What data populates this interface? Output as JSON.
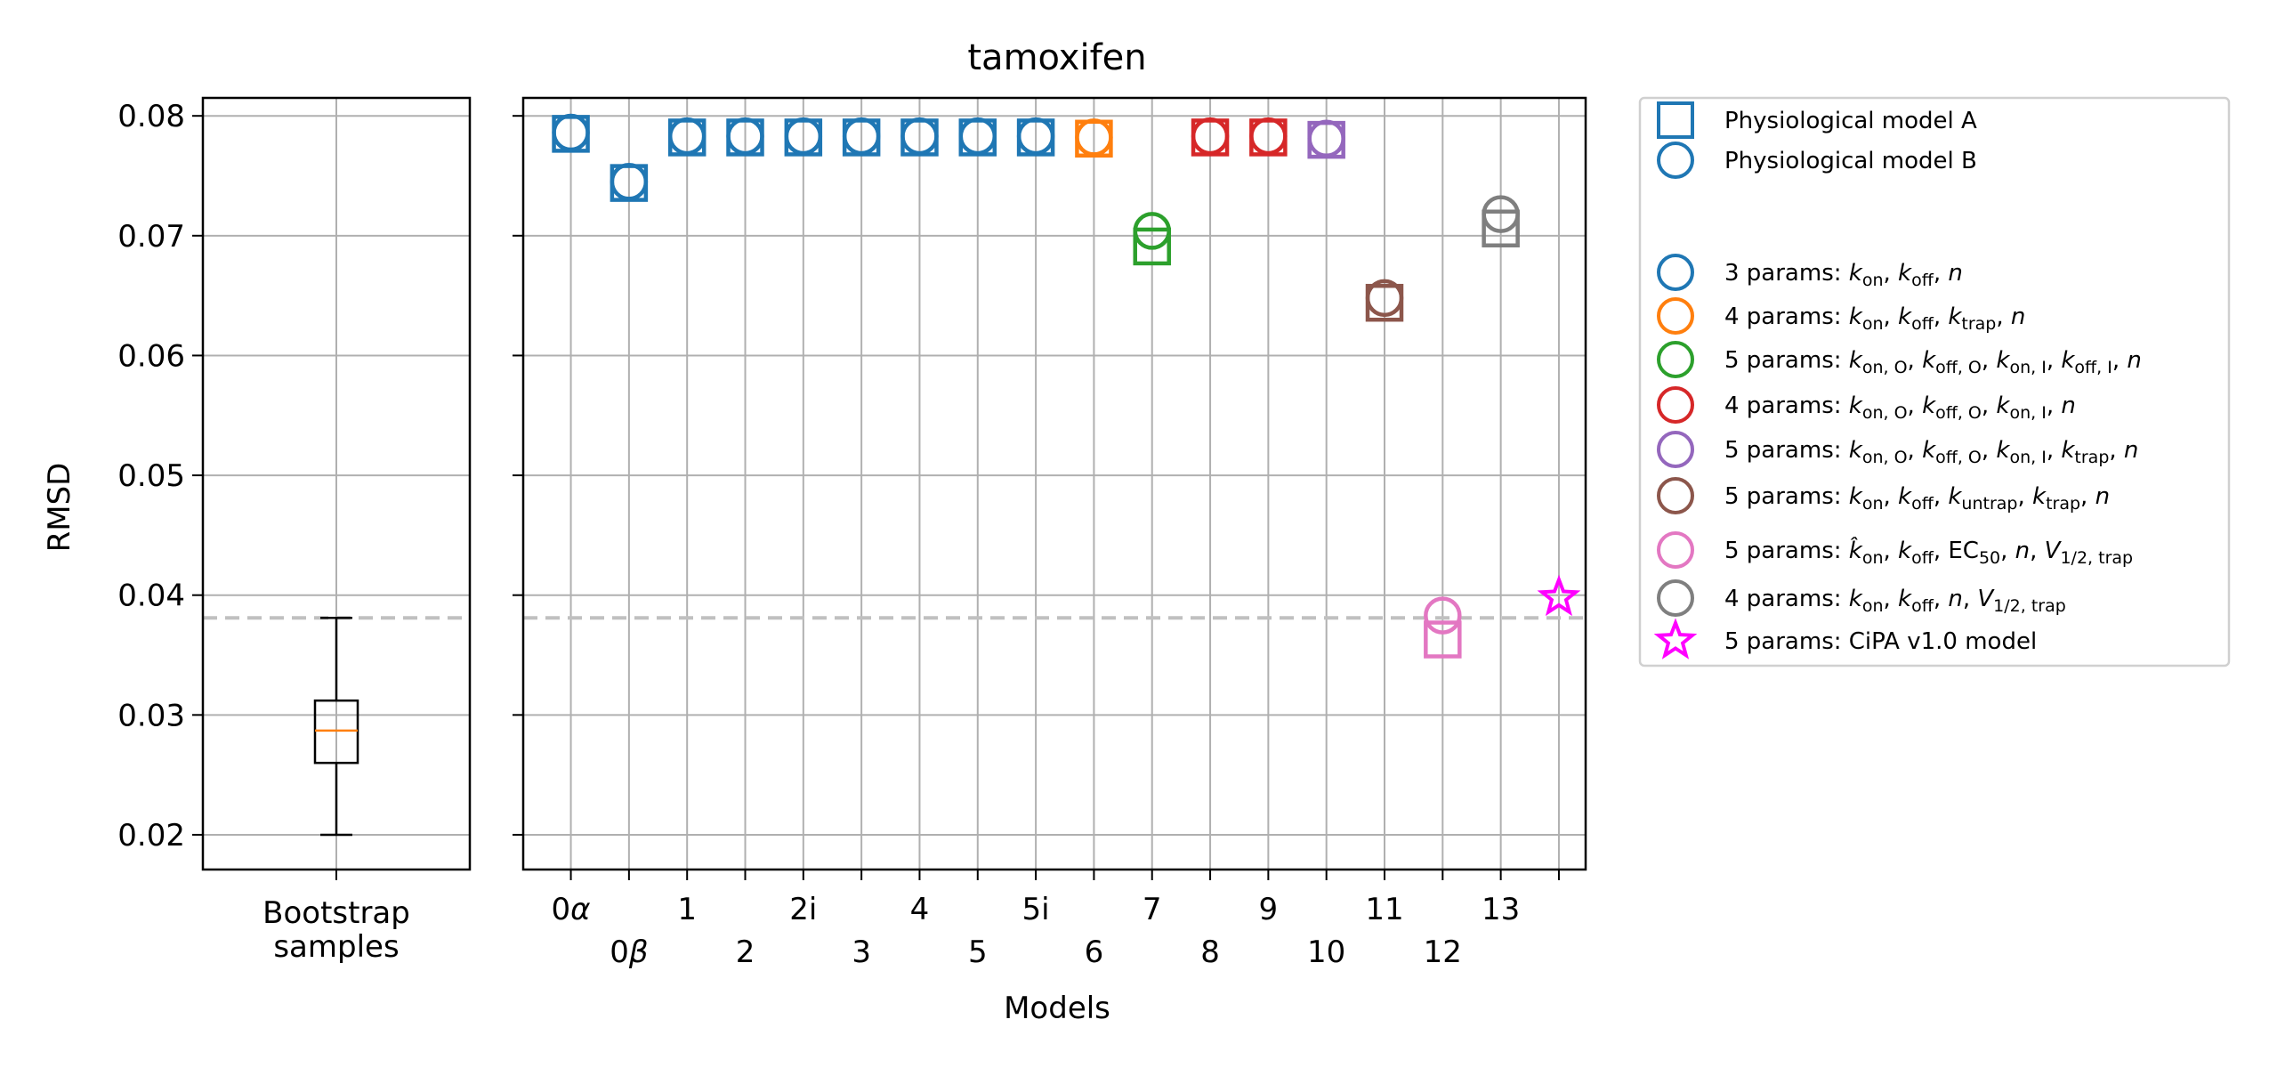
{
  "chart_data": {
    "type": "scatter",
    "title": "tamoxifen",
    "ylabel": "RMSD",
    "xlabel": "Models",
    "ylim": [
      0.0171,
      0.0815
    ],
    "yticks": [
      0.02,
      0.03,
      0.04,
      0.05,
      0.06,
      0.07,
      0.08
    ],
    "ytick_labels": [
      "0.02",
      "0.03",
      "0.04",
      "0.05",
      "0.06",
      "0.07",
      "0.08"
    ],
    "grid": true,
    "reference_line": {
      "y": 0.0381,
      "style": "dashed",
      "color": "#c0c0c0"
    },
    "bootstrap": {
      "label_line1": "Bootstrap",
      "label_line2": "samples",
      "whisker_low": 0.02,
      "q1": 0.026,
      "median": 0.0287,
      "q3": 0.0312,
      "whisker_high": 0.0381
    },
    "models": [
      {
        "label": "0α",
        "group": "3params",
        "A": 0.0785,
        "B": 0.0786
      },
      {
        "label": "0β",
        "group": "3params",
        "A": 0.0744,
        "B": 0.0745
      },
      {
        "label": "1",
        "group": "3params",
        "A": 0.0782,
        "B": 0.0783
      },
      {
        "label": "2",
        "group": "3params",
        "A": 0.0782,
        "B": 0.0783
      },
      {
        "label": "2i",
        "group": "3params",
        "A": 0.0782,
        "B": 0.0783
      },
      {
        "label": "3",
        "group": "3params",
        "A": 0.0782,
        "B": 0.0783
      },
      {
        "label": "4",
        "group": "3params",
        "A": 0.0782,
        "B": 0.0783
      },
      {
        "label": "5",
        "group": "3params",
        "A": 0.0782,
        "B": 0.0783
      },
      {
        "label": "5i",
        "group": "3params",
        "A": 0.0782,
        "B": 0.0783
      },
      {
        "label": "6",
        "group": "4params_trap",
        "A": 0.0781,
        "B": 0.0782
      },
      {
        "label": "7",
        "group": "5params_OI",
        "A": 0.0691,
        "B": 0.0704
      },
      {
        "label": "8",
        "group": "4params_OI",
        "A": 0.0782,
        "B": 0.0783
      },
      {
        "label": "9",
        "group": "4params_OI",
        "A": 0.0782,
        "B": 0.0783
      },
      {
        "label": "10",
        "group": "5params_OI_trap",
        "A": 0.078,
        "B": 0.0781
      },
      {
        "label": "11",
        "group": "5params_untrap",
        "A": 0.0644,
        "B": 0.0648
      },
      {
        "label": "12",
        "group": "5params_EC50",
        "A": 0.0363,
        "B": 0.0383
      },
      {
        "label": "13",
        "group": "4params_V",
        "A": 0.0706,
        "B": 0.0718
      },
      {
        "label": "",
        "group": "cipa",
        "star": 0.0398
      }
    ],
    "colors": {
      "3params": "#1f77b4",
      "4params_trap": "#ff7f0e",
      "5params_OI": "#2ca02c",
      "4params_OI": "#d62728",
      "5params_OI_trap": "#9467bd",
      "5params_untrap": "#8c564b",
      "5params_EC50": "#e377c2",
      "4params_V": "#7f7f7f",
      "cipa": "#ff00ff"
    },
    "legend": {
      "placement": "outside-right",
      "marker_entries": [
        {
          "shape": "square",
          "label": "Physiological model A"
        },
        {
          "shape": "circle",
          "label": "Physiological model B"
        }
      ],
      "color_entries": [
        {
          "group": "3params",
          "shape": "circle",
          "lead": "3 params: ",
          "math": "<i>k</i><tspan dy='6' font-size='19'>on</tspan><tspan dy='-6'>, </tspan><i>k</i><tspan dy='6' font-size='19'>off</tspan><tspan dy='-6'>, </tspan><i>n</i>"
        },
        {
          "group": "4params_trap",
          "shape": "circle",
          "lead": "4 params: ",
          "math": "<i>k</i><tspan dy='6' font-size='19'>on</tspan><tspan dy='-6'>, </tspan><i>k</i><tspan dy='6' font-size='19'>off</tspan><tspan dy='-6'>, </tspan><i>k</i><tspan dy='6' font-size='19'>trap</tspan><tspan dy='-6'>, </tspan><i>n</i>"
        },
        {
          "group": "5params_OI",
          "shape": "circle",
          "lead": "5 params: ",
          "math": "<i>k</i><tspan dy='6' font-size='19'>on, O</tspan><tspan dy='-6'>, </tspan><i>k</i><tspan dy='6' font-size='19'>off, O</tspan><tspan dy='-6'>, </tspan><i>k</i><tspan dy='6' font-size='19'>on, I</tspan><tspan dy='-6'>, </tspan><i>k</i><tspan dy='6' font-size='19'>off, I</tspan><tspan dy='-6'>, </tspan><i>n</i>"
        },
        {
          "group": "4params_OI",
          "shape": "circle",
          "lead": "4 params: ",
          "math": "<i>k</i><tspan dy='6' font-size='19'>on, O</tspan><tspan dy='-6'>, </tspan><i>k</i><tspan dy='6' font-size='19'>off, O</tspan><tspan dy='-6'>, </tspan><i>k</i><tspan dy='6' font-size='19'>on, I</tspan><tspan dy='-6'>, </tspan><i>n</i>"
        },
        {
          "group": "5params_OI_trap",
          "shape": "circle",
          "lead": "5 params: ",
          "math": "<i>k</i><tspan dy='6' font-size='19'>on, O</tspan><tspan dy='-6'>, </tspan><i>k</i><tspan dy='6' font-size='19'>off, O</tspan><tspan dy='-6'>, </tspan><i>k</i><tspan dy='6' font-size='19'>on, I</tspan><tspan dy='-6'>, </tspan><i>k</i><tspan dy='6' font-size='19'>trap</tspan><tspan dy='-6'>, </tspan><i>n</i>"
        },
        {
          "group": "5params_untrap",
          "shape": "circle",
          "lead": "5 params: ",
          "math": "<i>k</i><tspan dy='6' font-size='19'>on</tspan><tspan dy='-6'>, </tspan><i>k</i><tspan dy='6' font-size='19'>off</tspan><tspan dy='-6'>, </tspan><i>k</i><tspan dy='6' font-size='19'>untrap</tspan><tspan dy='-6'>, </tspan><i>k</i><tspan dy='6' font-size='19'>trap</tspan><tspan dy='-6'>, </tspan><i>n</i>"
        },
        {
          "group": "5params_EC50",
          "shape": "circle",
          "lead": "5 params: ",
          "math": "<i>k̂</i><tspan dy='6' font-size='19'>on</tspan><tspan dy='-6'>, </tspan><i>k</i><tspan dy='6' font-size='19'>off</tspan><tspan dy='-6'>, EC</tspan><tspan dy='6' font-size='19'>50</tspan><tspan dy='-6'>, </tspan><i>n</i><tspan>, </tspan><i>V</i><tspan dy='6' font-size='19'>1/2, trap</tspan>"
        },
        {
          "group": "4params_V",
          "shape": "circle",
          "lead": "4 params: ",
          "math": "<i>k</i><tspan dy='6' font-size='19'>on</tspan><tspan dy='-6'>, </tspan><i>k</i><tspan dy='6' font-size='19'>off</tspan><tspan dy='-6'>, </tspan><i>n</i><tspan>, </tspan><i>V</i><tspan dy='6' font-size='19'>1/2, trap</tspan>"
        },
        {
          "group": "cipa",
          "shape": "star",
          "lead": "5 params: CiPA v1.0 model",
          "math": ""
        }
      ]
    }
  }
}
